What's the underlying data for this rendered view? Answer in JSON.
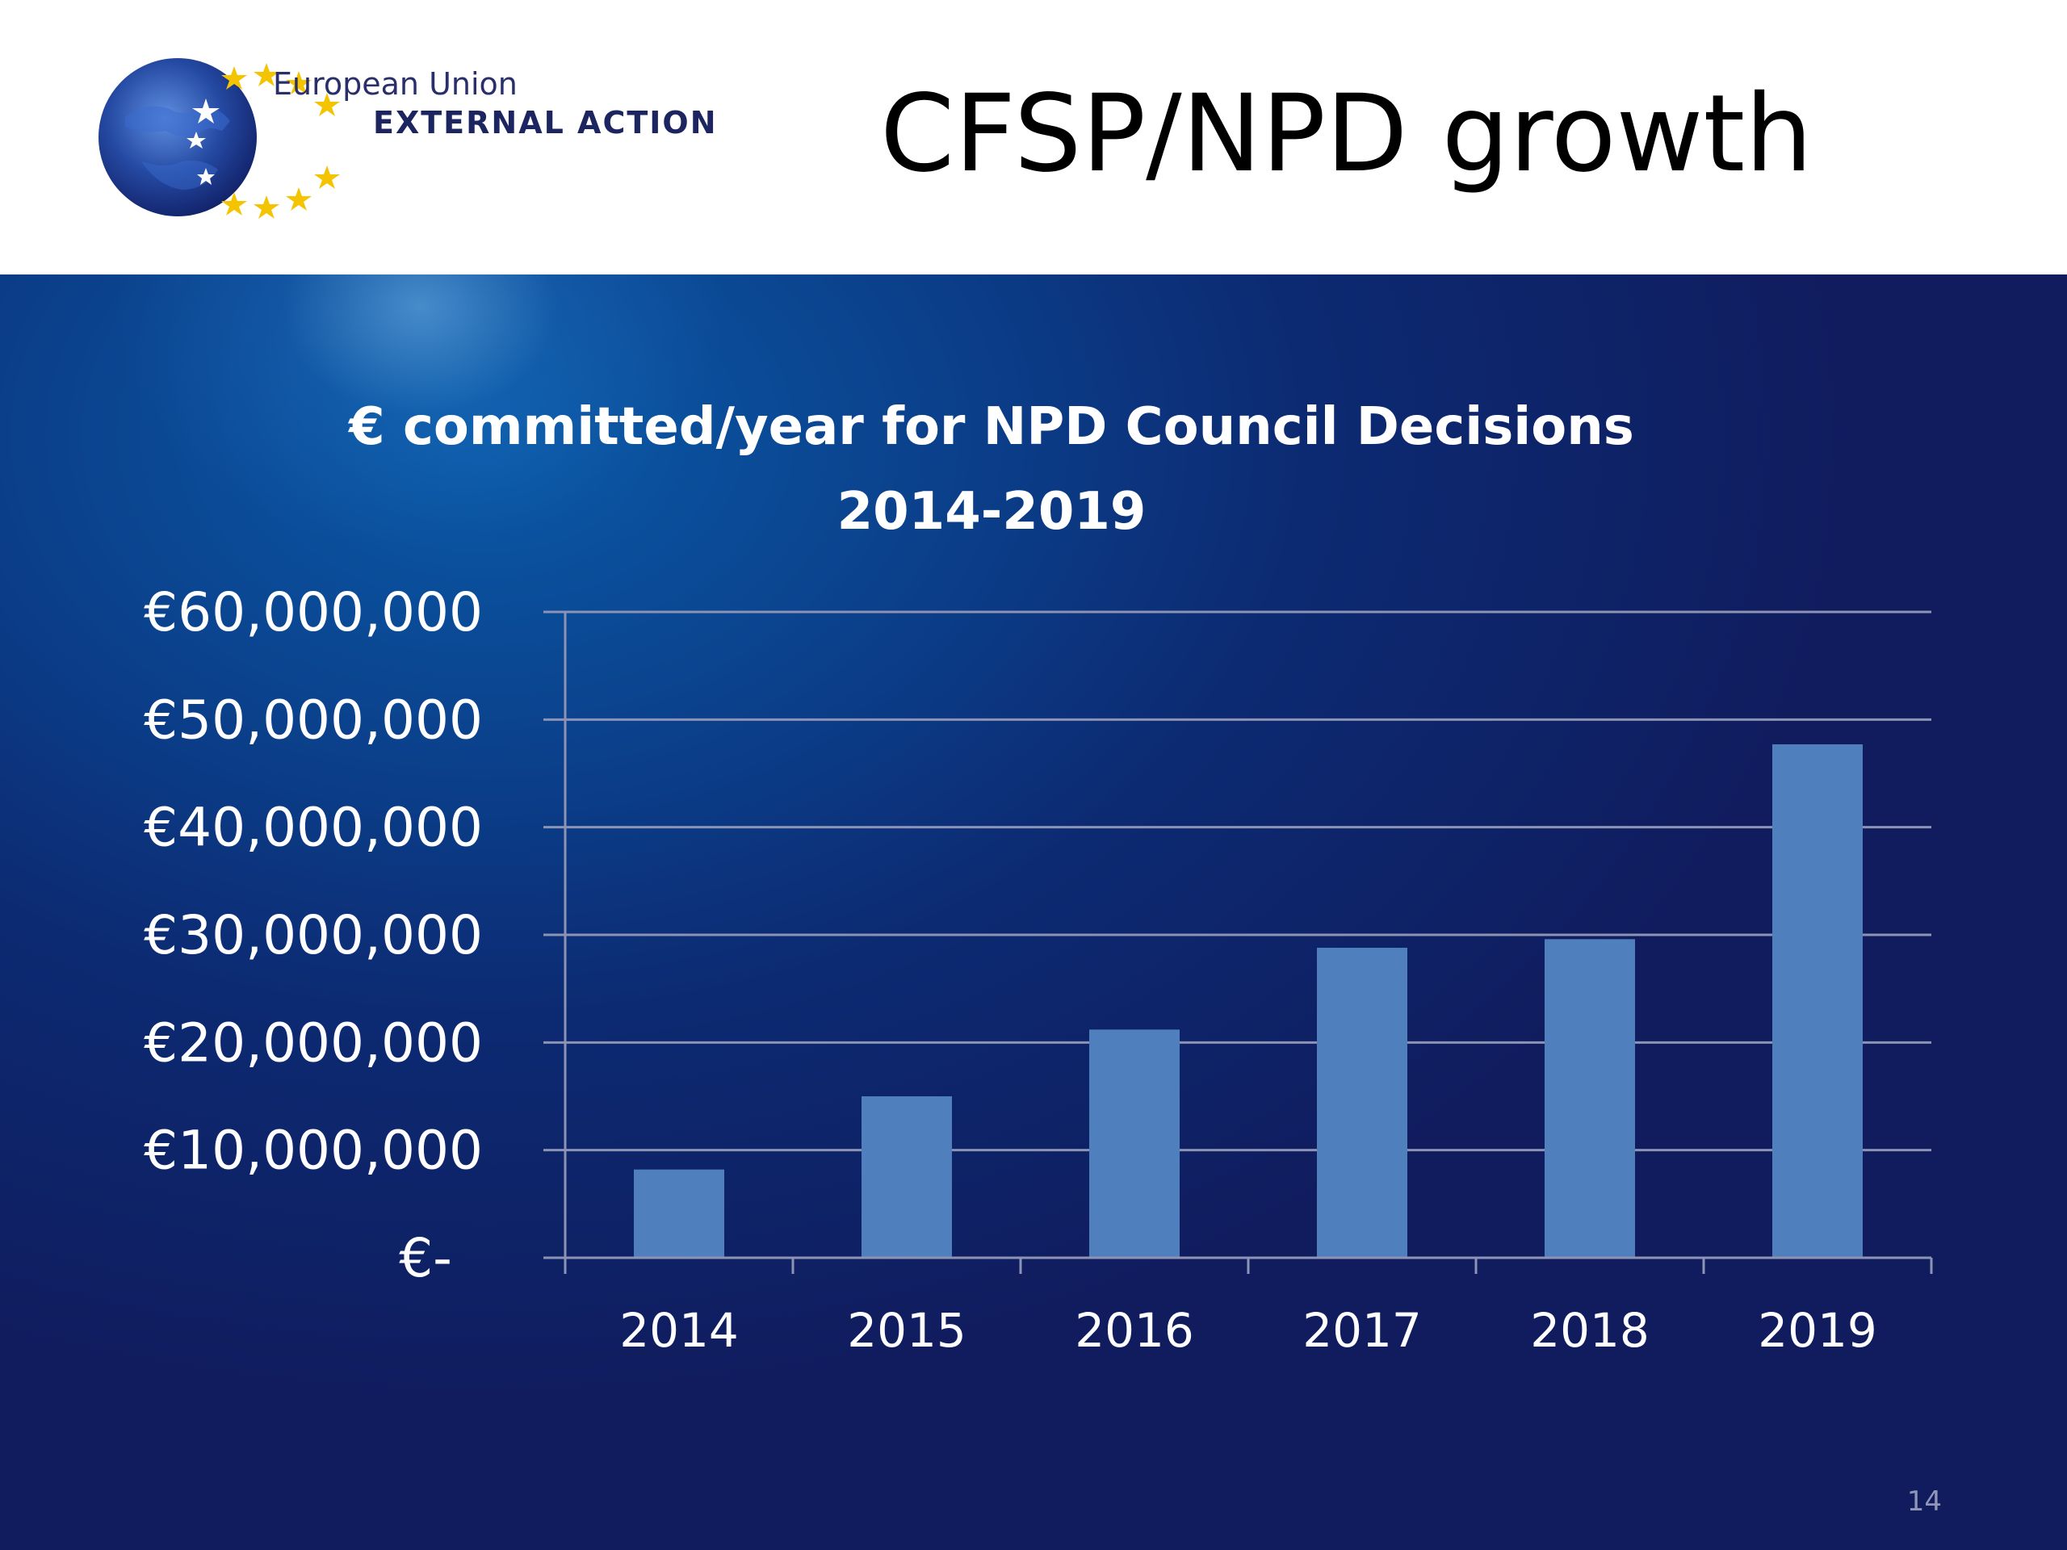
{
  "header": {
    "logo_line1": "European Union",
    "logo_line2": "EXTERNAL ACTION",
    "title": "CFSP/NPD growth"
  },
  "footer": {
    "slide_number": "14"
  },
  "colors": {
    "bar": "#4f7fbc",
    "grid": "#8c93b5",
    "star": "#f5c400",
    "globe": "#1f3f95"
  },
  "chart_data": {
    "type": "bar",
    "title": [
      "€ committed/year for NPD Council Decisions",
      "2014-2019"
    ],
    "categories": [
      "2014",
      "2015",
      "2016",
      "2017",
      "2018",
      "2019"
    ],
    "values": [
      8200000,
      15000000,
      21200000,
      28800000,
      29600000,
      47700000
    ],
    "ylim": [
      0,
      60000000
    ],
    "yticks": [
      0,
      10000000,
      20000000,
      30000000,
      40000000,
      50000000,
      60000000
    ],
    "ytick_labels": [
      "€-",
      "€10,000,000",
      "€20,000,000",
      "€30,000,000",
      "€40,000,000",
      "€50,000,000",
      "€60,000,000"
    ],
    "xlabel": "",
    "ylabel": "",
    "grid": true,
    "legend": "none"
  }
}
